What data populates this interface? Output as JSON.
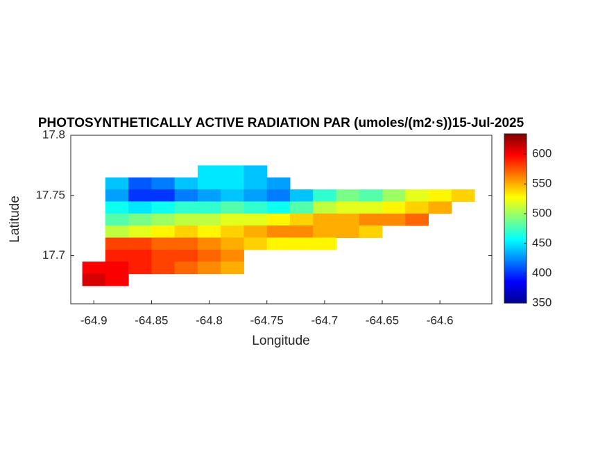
{
  "chart_data": {
    "type": "heatmap",
    "title": "PHOTOSYNTHETICALLY ACTIVE RADIATION PAR (umoles/(m2·s))15-Jul-2025",
    "xlabel": "Longitude",
    "ylabel": "Latitude",
    "x": [
      -64.9,
      -64.88,
      -64.86,
      -64.84,
      -64.82,
      -64.8,
      -64.78,
      -64.76,
      -64.74,
      -64.72,
      -64.7,
      -64.68,
      -64.66,
      -64.64,
      -64.62,
      -64.6,
      -64.58
    ],
    "y": [
      17.77,
      17.76,
      17.75,
      17.74,
      17.73,
      17.72,
      17.71,
      17.7,
      17.69,
      17.68
    ],
    "values": [
      [
        null,
        null,
        null,
        null,
        null,
        450,
        450,
        440,
        null,
        null,
        null,
        null,
        null,
        null,
        null,
        null,
        null
      ],
      [
        null,
        440,
        410,
        420,
        440,
        450,
        450,
        440,
        430,
        null,
        null,
        null,
        null,
        null,
        null,
        null,
        null
      ],
      [
        null,
        430,
        400,
        400,
        420,
        430,
        440,
        430,
        420,
        440,
        470,
        490,
        480,
        500,
        520,
        530,
        540
      ],
      [
        null,
        460,
        450,
        460,
        470,
        470,
        480,
        470,
        460,
        480,
        510,
        520,
        520,
        530,
        540,
        550,
        null
      ],
      [
        null,
        480,
        490,
        500,
        510,
        510,
        520,
        520,
        530,
        540,
        550,
        550,
        560,
        560,
        570,
        null,
        null
      ],
      [
        null,
        510,
        520,
        530,
        540,
        530,
        540,
        550,
        560,
        560,
        550,
        550,
        540,
        null,
        null,
        null,
        null
      ],
      [
        null,
        580,
        580,
        570,
        570,
        560,
        550,
        540,
        530,
        530,
        530,
        null,
        null,
        null,
        null,
        null,
        null
      ],
      [
        null,
        590,
        590,
        580,
        580,
        570,
        560,
        null,
        null,
        null,
        null,
        null,
        null,
        null,
        null,
        null,
        null
      ],
      [
        600,
        600,
        590,
        580,
        570,
        560,
        550,
        null,
        null,
        null,
        null,
        null,
        null,
        null,
        null,
        null,
        null
      ],
      [
        610,
        600,
        null,
        null,
        null,
        null,
        null,
        null,
        null,
        null,
        null,
        null,
        null,
        null,
        null,
        null,
        null
      ]
    ],
    "xlim": [
      -64.92,
      -64.555
    ],
    "ylim": [
      17.66,
      17.8
    ],
    "xticks": [
      -64.9,
      -64.85,
      -64.8,
      -64.75,
      -64.7,
      -64.65,
      -64.6
    ],
    "yticks": [
      17.7,
      17.75,
      17.8
    ],
    "colormap": "jet",
    "clim": [
      350,
      634
    ],
    "cticks": [
      350,
      400,
      450,
      500,
      550,
      600
    ]
  }
}
